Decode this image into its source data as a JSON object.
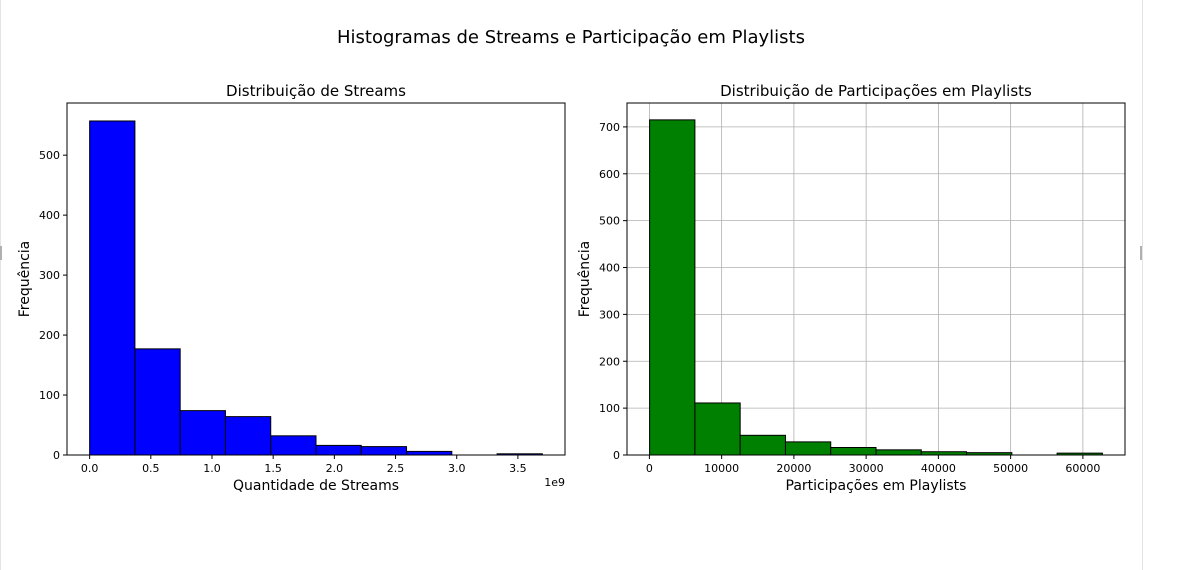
{
  "figure": {
    "suptitle": "Histogramas de Streams e Participação em Playlists"
  },
  "chart_data": [
    {
      "type": "bar",
      "title": "Distribuição de Streams",
      "xlabel": "Quantidade de Streams",
      "ylabel": "Frequência",
      "x_offset_text": "1e9",
      "grid": false,
      "color": "#0000ff",
      "edge_color": "#000000",
      "bin_edges": [
        0.0,
        0.37,
        0.74,
        1.11,
        1.48,
        1.85,
        2.22,
        2.59,
        2.96,
        3.33,
        3.7
      ],
      "values": [
        557,
        177,
        74,
        64,
        32,
        16,
        14,
        6,
        0,
        2
      ],
      "xlim": [
        -0.185,
        3.885
      ],
      "ylim": [
        0,
        587
      ],
      "xticks": [
        0.0,
        0.5,
        1.0,
        1.5,
        2.0,
        2.5,
        3.0,
        3.5
      ],
      "xtick_labels": [
        "0.0",
        "0.5",
        "1.0",
        "1.5",
        "2.0",
        "2.5",
        "3.0",
        "3.5"
      ],
      "yticks": [
        0,
        100,
        200,
        300,
        400,
        500
      ],
      "ytick_labels": [
        "0",
        "100",
        "200",
        "300",
        "400",
        "500"
      ]
    },
    {
      "type": "bar",
      "title": "Distribuição de Participações em Playlists",
      "xlabel": "Participações em Playlists",
      "ylabel": "Frequência",
      "grid": true,
      "color": "#008000",
      "edge_color": "#000000",
      "bin_edges": [
        31,
        6298,
        12565,
        18832,
        25099,
        31366,
        37633,
        43900,
        50167,
        56434,
        62701
      ],
      "values": [
        715,
        111,
        42,
        28,
        16,
        11,
        7,
        5,
        0,
        4
      ],
      "xlim": [
        -3100,
        65830
      ],
      "ylim": [
        0,
        751
      ],
      "xticks": [
        0,
        10000,
        20000,
        30000,
        40000,
        50000,
        60000
      ],
      "xtick_labels": [
        "0",
        "10000",
        "20000",
        "30000",
        "40000",
        "50000",
        "60000"
      ],
      "yticks": [
        0,
        100,
        200,
        300,
        400,
        500,
        600,
        700
      ],
      "ytick_labels": [
        "0",
        "100",
        "200",
        "300",
        "400",
        "500",
        "600",
        "700"
      ]
    }
  ]
}
